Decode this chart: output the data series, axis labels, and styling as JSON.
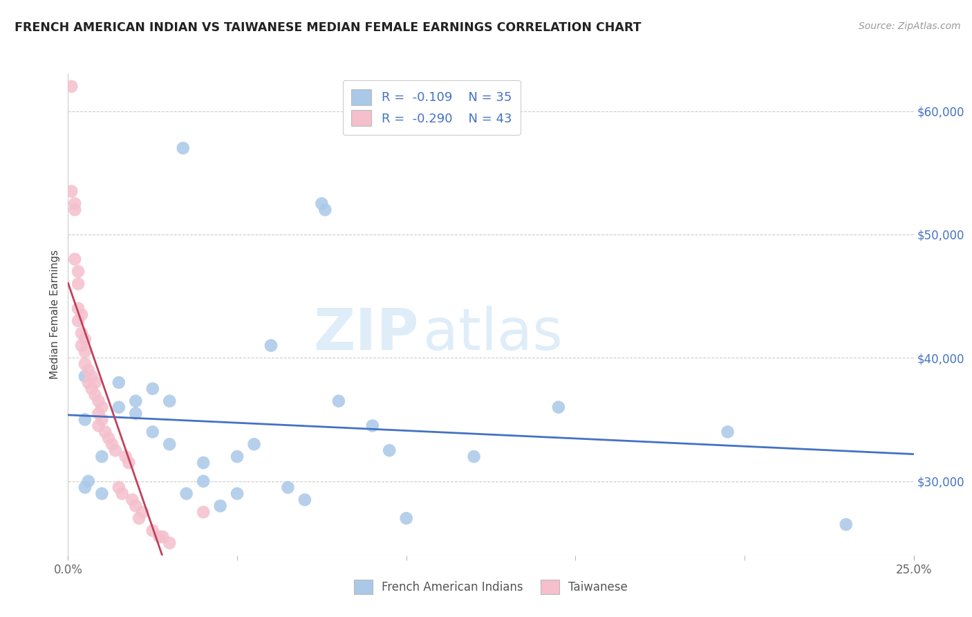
{
  "title": "FRENCH AMERICAN INDIAN VS TAIWANESE MEDIAN FEMALE EARNINGS CORRELATION CHART",
  "source": "Source: ZipAtlas.com",
  "ylabel": "Median Female Earnings",
  "xlim": [
    0.0,
    0.25
  ],
  "ylim": [
    24000,
    63000
  ],
  "xtick_vals": [
    0.0,
    0.25
  ],
  "xtick_labels": [
    "0.0%",
    "25.0%"
  ],
  "xtick_minor_vals": [
    0.05,
    0.1,
    0.15,
    0.2
  ],
  "ytick_vals": [
    30000,
    40000,
    50000,
    60000
  ],
  "ytick_labels": [
    "$30,000",
    "$40,000",
    "$50,000",
    "$60,000"
  ],
  "blue_color": "#aac8e8",
  "pink_color": "#f5bfcc",
  "trendline_blue": "#4472c4",
  "trendline_pink": "#c0405a",
  "watermark_text": "ZIP",
  "watermark_text2": "atlas",
  "watermark_color1": "#c5dff5",
  "watermark_color2": "#c5dff5",
  "legend1_labels": [
    "R =  -0.109    N = 35",
    "R =  -0.290    N = 43"
  ],
  "legend2_labels": [
    "French American Indians",
    "Taiwanese"
  ],
  "french_x": [
    0.034,
    0.005,
    0.005,
    0.075,
    0.076,
    0.006,
    0.01,
    0.005,
    0.01,
    0.015,
    0.015,
    0.02,
    0.02,
    0.025,
    0.025,
    0.03,
    0.03,
    0.035,
    0.04,
    0.04,
    0.045,
    0.05,
    0.05,
    0.055,
    0.06,
    0.065,
    0.07,
    0.08,
    0.09,
    0.095,
    0.1,
    0.12,
    0.145,
    0.195,
    0.23
  ],
  "french_y": [
    57000,
    38500,
    35000,
    52500,
    52000,
    30000,
    29000,
    29500,
    32000,
    38000,
    36000,
    35500,
    36500,
    37500,
    34000,
    36500,
    33000,
    29000,
    30000,
    31500,
    28000,
    32000,
    29000,
    33000,
    41000,
    29500,
    28500,
    36500,
    34500,
    32500,
    27000,
    32000,
    36000,
    34000,
    26500
  ],
  "taiwanese_x": [
    0.001,
    0.001,
    0.002,
    0.002,
    0.002,
    0.003,
    0.003,
    0.003,
    0.003,
    0.004,
    0.004,
    0.004,
    0.005,
    0.005,
    0.005,
    0.006,
    0.006,
    0.007,
    0.007,
    0.008,
    0.008,
    0.009,
    0.009,
    0.009,
    0.01,
    0.01,
    0.011,
    0.012,
    0.013,
    0.014,
    0.015,
    0.016,
    0.017,
    0.018,
    0.019,
    0.02,
    0.021,
    0.022,
    0.025,
    0.027,
    0.028,
    0.03,
    0.04
  ],
  "taiwanese_y": [
    62000,
    53500,
    52500,
    52000,
    48000,
    47000,
    46000,
    44000,
    43000,
    43500,
    42000,
    41000,
    41500,
    40500,
    39500,
    39000,
    38000,
    38500,
    37500,
    38000,
    37000,
    36500,
    35500,
    34500,
    36000,
    35000,
    34000,
    33500,
    33000,
    32500,
    29500,
    29000,
    32000,
    31500,
    28500,
    28000,
    27000,
    27500,
    26000,
    25500,
    25500,
    25000,
    27500
  ]
}
